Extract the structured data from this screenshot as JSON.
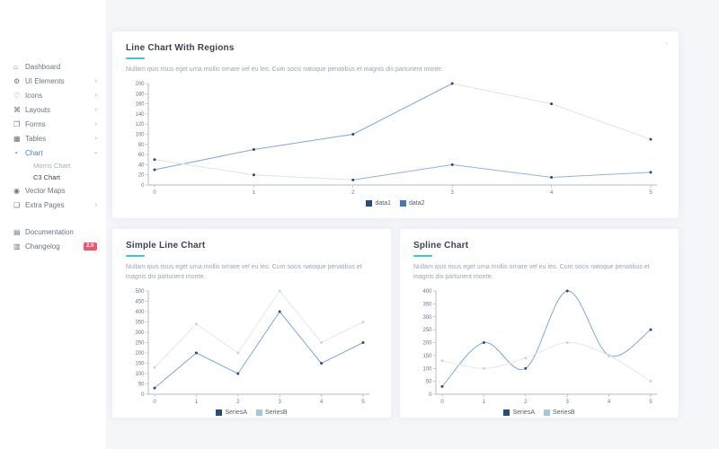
{
  "colors": {
    "accent_underline": "#3ac7d1",
    "sidebar_active": "#4a81d4",
    "badge_bg": "#f1556c",
    "card_bg": "#ffffff",
    "content_bg": "#f4f6f9",
    "axis": "#9aa3ad",
    "tick_text": "#6d7682"
  },
  "icons": {
    "chevron_collapsed": "›",
    "chevron_expanded": "›",
    "card_collapse": "›"
  },
  "sidebar": {
    "items": [
      {
        "label": "Dashboard",
        "icon": "dashboard-icon",
        "glyph": "⌂",
        "chevron": false
      },
      {
        "label": "UI Elements",
        "icon": "ui-elements-icon",
        "glyph": "⚙",
        "chevron": true
      },
      {
        "label": "Icons",
        "icon": "icons-icon",
        "glyph": "♡",
        "chevron": true
      },
      {
        "label": "Layouts",
        "icon": "layouts-icon",
        "glyph": "⌘",
        "chevron": true
      },
      {
        "label": "Forms",
        "icon": "forms-icon",
        "glyph": "❐",
        "chevron": true
      },
      {
        "label": "Tables",
        "icon": "tables-icon",
        "glyph": "▦",
        "chevron": true
      },
      {
        "label": "Chart",
        "icon": "chart-icon",
        "glyph": "◔",
        "chevron": true,
        "expanded": true,
        "active": true,
        "children": [
          {
            "label": "Morris Chart",
            "active": false
          },
          {
            "label": "C3 Chart",
            "active": true
          }
        ]
      },
      {
        "label": "Vector Maps",
        "icon": "vector-maps-icon",
        "glyph": "◉",
        "chevron": false
      },
      {
        "label": "Extra Pages",
        "icon": "extra-pages-icon",
        "glyph": "❏",
        "chevron": true
      },
      {
        "label": "Documentation",
        "icon": "documentation-icon",
        "glyph": "▤",
        "chevron": false,
        "gap": true
      },
      {
        "label": "Changelog",
        "icon": "changelog-icon",
        "glyph": "▥",
        "chevron": false,
        "badge": "2.0"
      }
    ]
  },
  "chart_data": [
    {
      "id": "regions",
      "type": "line",
      "title": "Line Chart With Regions",
      "subtitle": "Nullam quis risus eget urna mollis ornare vel eu leo. Cum socis natoque penatibus et magnis dis parturient monte.",
      "x": [
        0,
        1,
        2,
        3,
        4,
        5
      ],
      "series": [
        {
          "name": "data1",
          "values": [
            30,
            70,
            100,
            200,
            160,
            90
          ],
          "color": "#2c4a7a",
          "line": "#7fa8da",
          "point": "#2c4a7a",
          "light": "#dde4eb",
          "light_segments": [
            3,
            4
          ]
        },
        {
          "name": "data2",
          "values": [
            50,
            20,
            10,
            40,
            15,
            25
          ],
          "color": "#4576b8",
          "line": "#8fb3e2",
          "point": "#2c4a7a",
          "light": "#dde4eb",
          "light_segments": [
            0,
            1
          ]
        }
      ],
      "ylim": [
        0,
        200
      ],
      "ytick_step": 20,
      "grid": false,
      "legend_position": "bottom"
    },
    {
      "id": "simple",
      "type": "line",
      "title": "Simple Line Chart",
      "subtitle": "Nullam quis risus eget urna mollis ornare vel eu leo. Cum socis natoque penatibus et magnis dis parturient monte.",
      "x": [
        0,
        1,
        2,
        3,
        4,
        5
      ],
      "series": [
        {
          "name": "SeriesA",
          "values": [
            30,
            200,
            100,
            400,
            150,
            250
          ],
          "color": "#2c4a7a",
          "line": "#7fa8da",
          "point": "#2c4a7a"
        },
        {
          "name": "SeriesB",
          "values": [
            130,
            340,
            200,
            500,
            250,
            350
          ],
          "color": "#a5c4e6",
          "line": "#e4e9ee",
          "point": "#c9d6e3"
        }
      ],
      "ylim": [
        0,
        500
      ],
      "ytick_step": 50,
      "grid": false,
      "legend_position": "bottom"
    },
    {
      "id": "spline",
      "type": "spline",
      "title": "Spline Chart",
      "subtitle": "Nullam quis risus eget urna mollis ornare vel eu leo. Cum socis natoque penatibus et magnis dis parturient monte.",
      "x": [
        0,
        1,
        2,
        3,
        4,
        5
      ],
      "series": [
        {
          "name": "SeriesA",
          "values": [
            30,
            200,
            100,
            400,
            150,
            250
          ],
          "color": "#2c4a7a",
          "line": "#7fa8da",
          "point": "#2c4a7a"
        },
        {
          "name": "SeriesB",
          "values": [
            130,
            100,
            140,
            200,
            150,
            50
          ],
          "color": "#a5c4e6",
          "line": "#e4e9ee",
          "point": "#c9d6e3"
        }
      ],
      "ylim": [
        0,
        400
      ],
      "ytick_step": 50,
      "grid": false,
      "legend_position": "bottom"
    }
  ]
}
